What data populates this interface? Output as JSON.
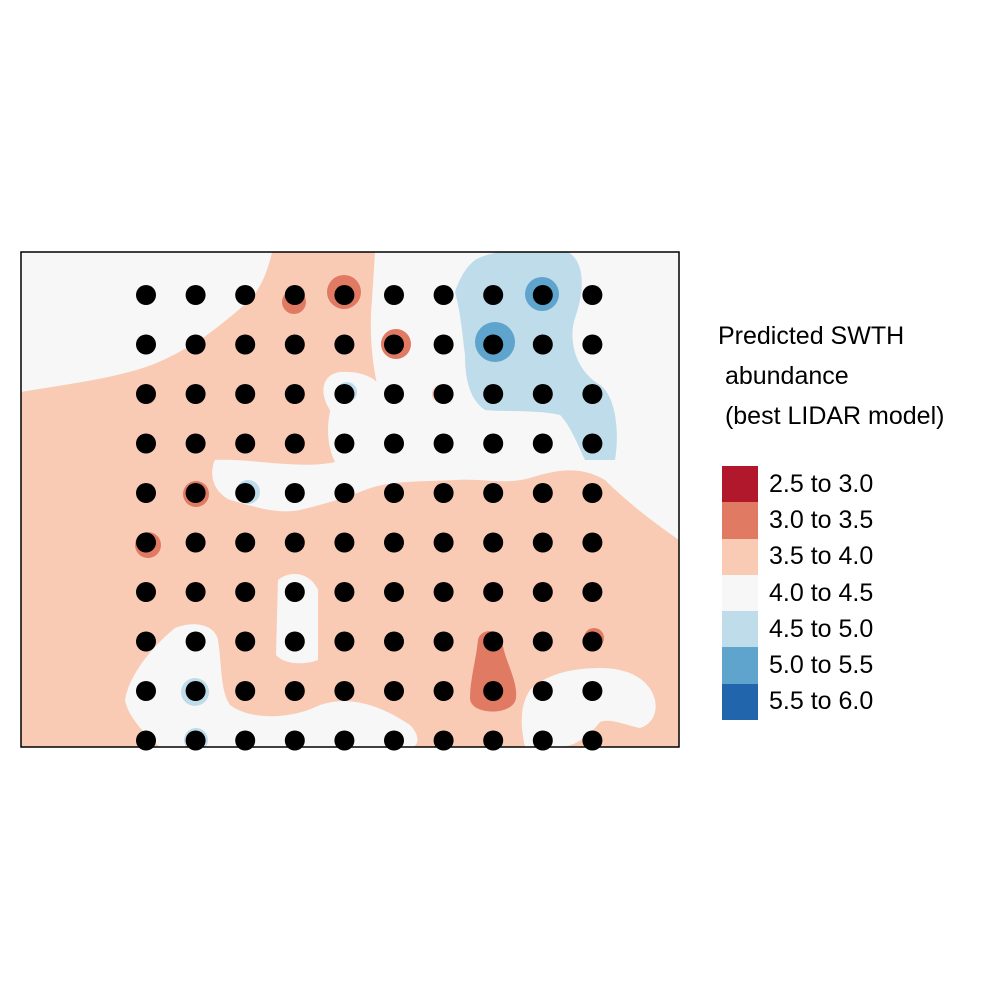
{
  "legend": {
    "title_lines": [
      "Predicted SWTH",
      " abundance",
      " (best LIDAR model)"
    ],
    "classes": [
      {
        "label": "2.5 to 3.0",
        "color": "#b2182b"
      },
      {
        "label": "3.0 to 3.5",
        "color": "#e07a63"
      },
      {
        "label": "3.5 to 4.0",
        "color": "#f9cbb4"
      },
      {
        "label": "4.0 to 4.5",
        "color": "#f7f7f7"
      },
      {
        "label": "4.5 to 5.0",
        "color": "#bfdceb"
      },
      {
        "label": "5.0 to 5.5",
        "color": "#5ea4cc"
      },
      {
        "label": "5.5 to 6.0",
        "color": "#2166ac"
      }
    ]
  },
  "survey_points": {
    "color": "#000000",
    "rows": 10,
    "cols": 10
  }
}
